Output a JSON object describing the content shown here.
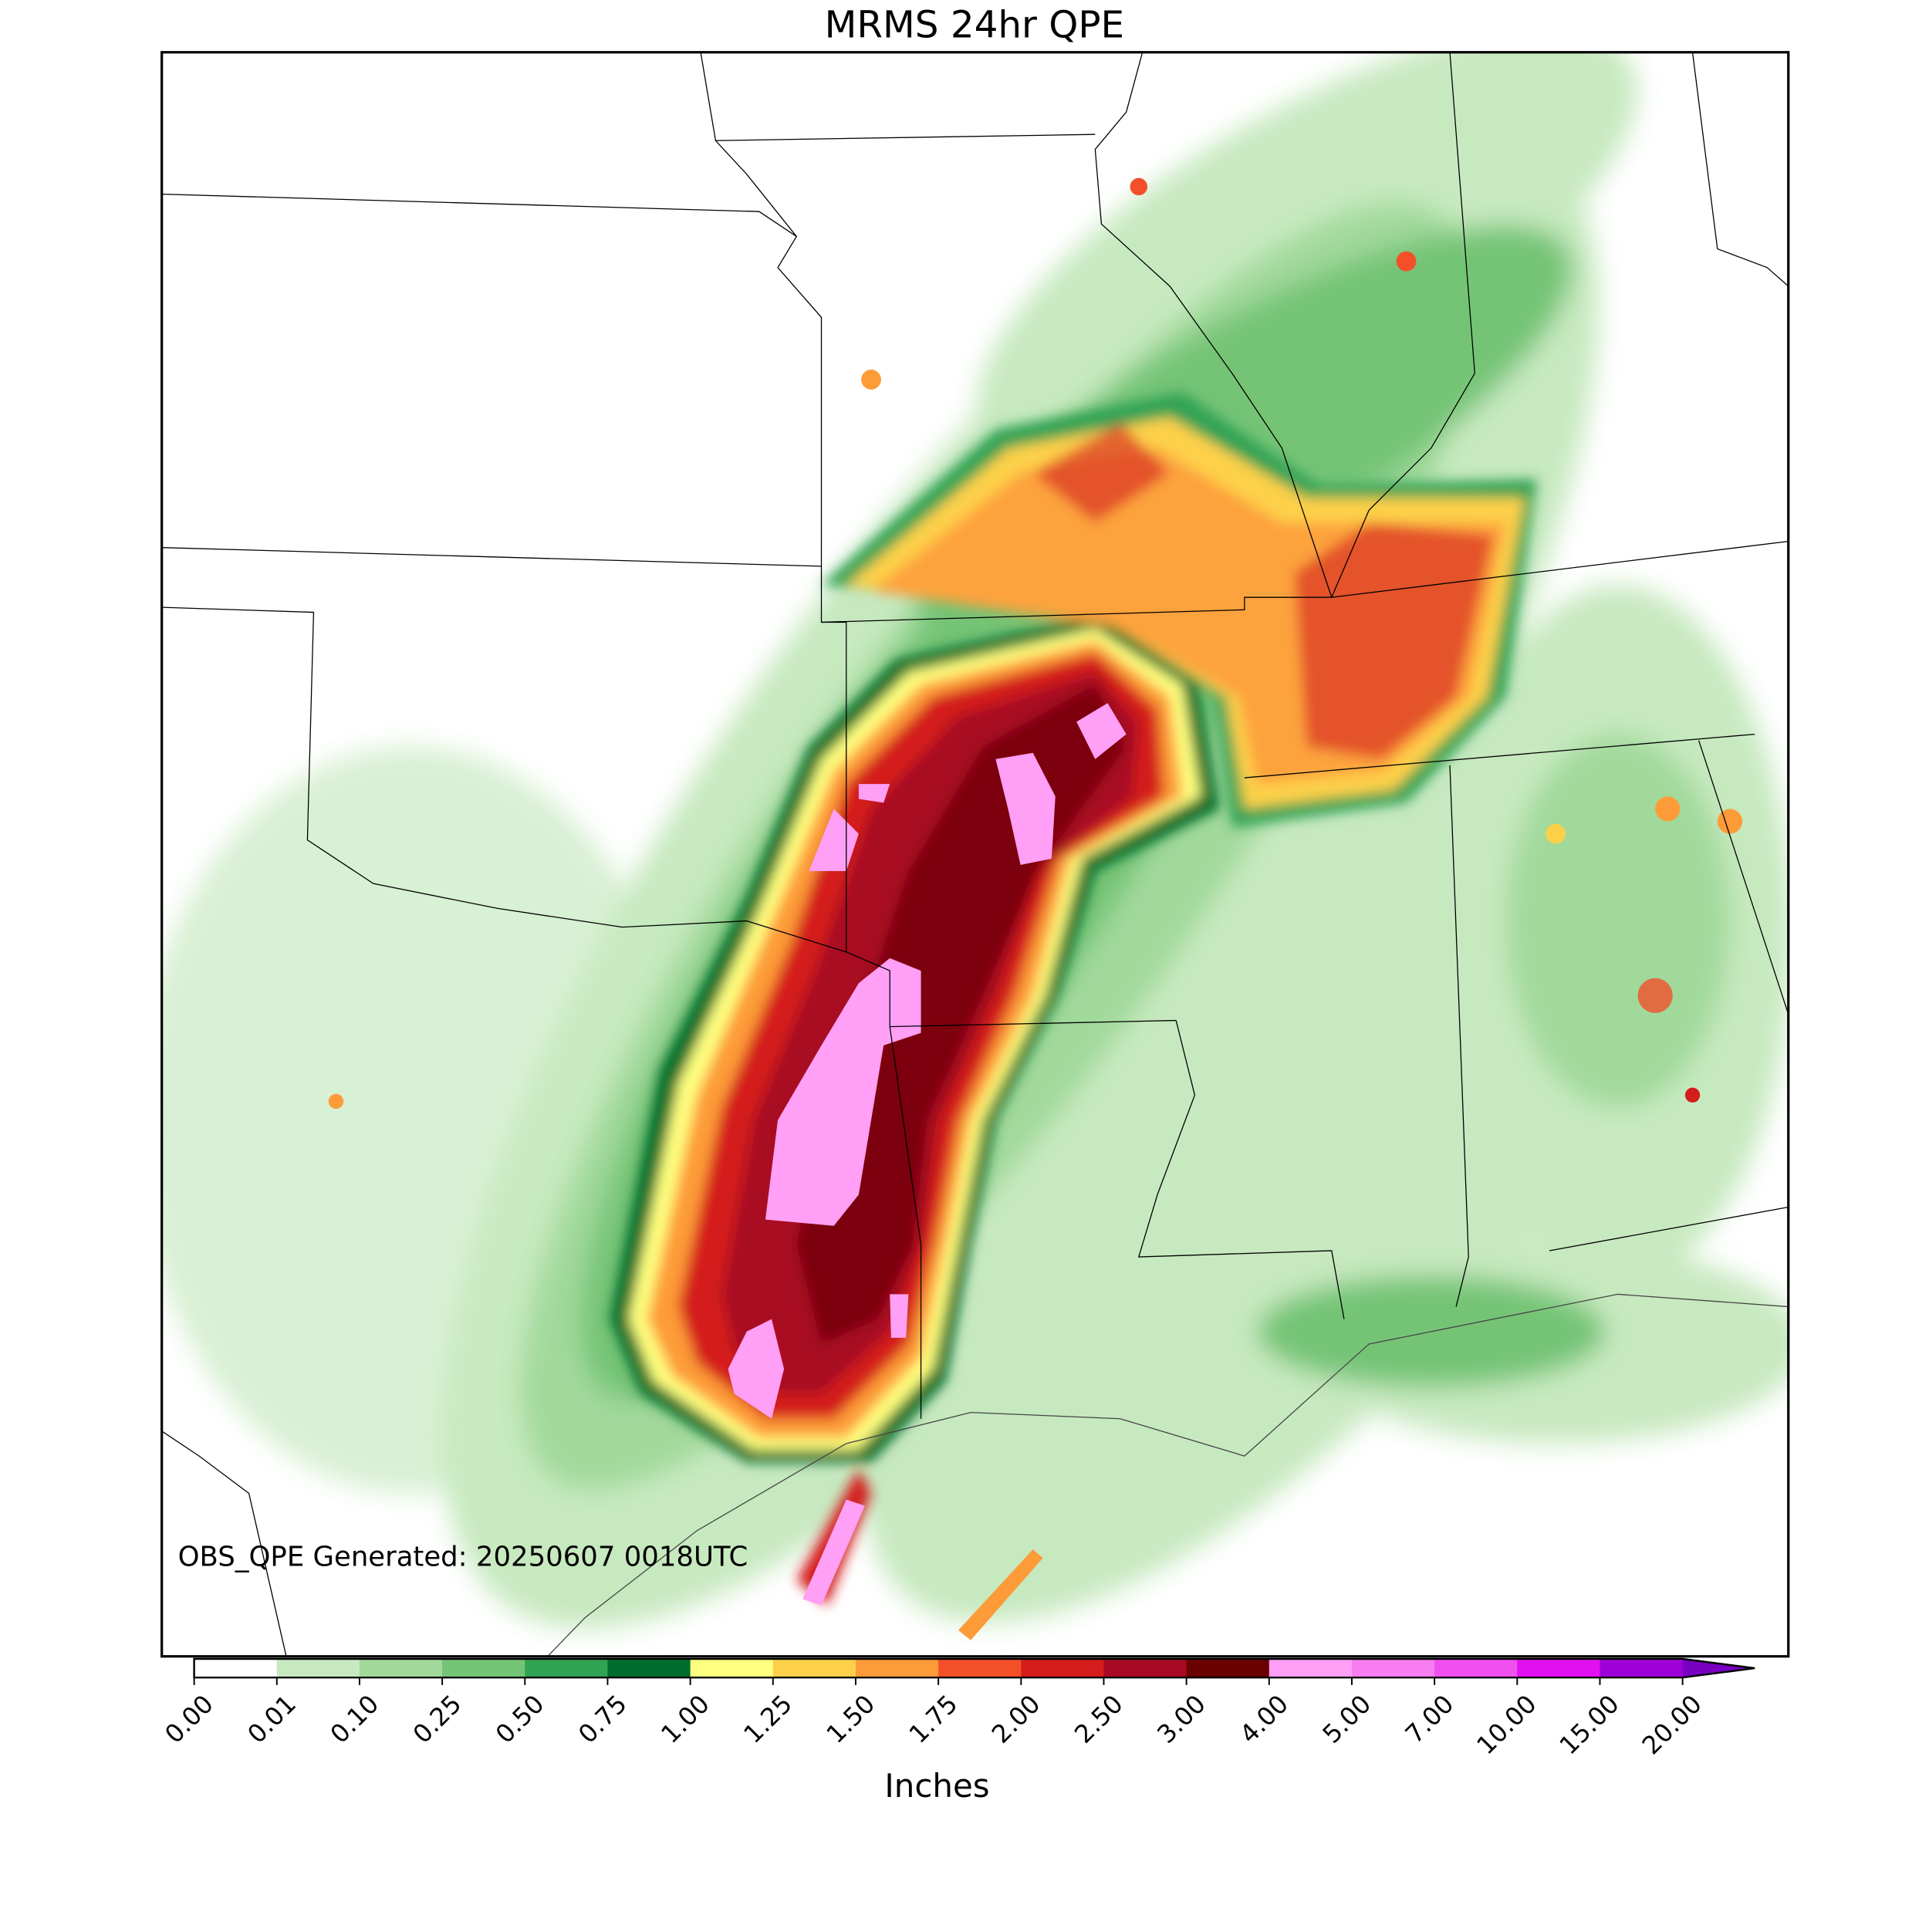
{
  "map": {
    "title": "MRMS 24hr QPE",
    "annotation": "OBS_QPE Generated: 20250607 0018UTC",
    "colorbar": {
      "label": "Inches",
      "ticks": [
        {
          "value": 0,
          "label": "0.00"
        },
        {
          "value": 0.01,
          "label": "0.01"
        },
        {
          "value": 0.1,
          "label": "0.10"
        },
        {
          "value": 0.25,
          "label": "0.25"
        },
        {
          "value": 0.5,
          "label": "0.50"
        },
        {
          "value": 0.75,
          "label": "0.75"
        },
        {
          "value": 1,
          "label": "1.00"
        },
        {
          "value": 1.25,
          "label": "1.25"
        },
        {
          "value": 1.5,
          "label": "1.50"
        },
        {
          "value": 1.75,
          "label": "1.75"
        },
        {
          "value": 2,
          "label": "2.00"
        },
        {
          "value": 2.5,
          "label": "2.50"
        },
        {
          "value": 3,
          "label": "3.00"
        },
        {
          "value": 4,
          "label": "4.00"
        },
        {
          "value": 5,
          "label": "5.00"
        },
        {
          "value": 7,
          "label": "7.00"
        },
        {
          "value": 10,
          "label": "10.00"
        },
        {
          "value": 15,
          "label": "15.00"
        },
        {
          "value": 20,
          "label": "20.00"
        }
      ],
      "colors": [
        "#ffffff",
        "#c7e9c0",
        "#a1d99b",
        "#74c476",
        "#31a354",
        "#006d2c",
        "#ffff80",
        "#fdd049",
        "#fd9b39",
        "#f3502a",
        "#d41d1c",
        "#a80a24",
        "#6a0000",
        "#ff9ff5",
        "#f77df0",
        "#f050f0",
        "#e010f0",
        "#a000d8"
      ],
      "extend_color": "#7a00c0"
    }
  }
}
